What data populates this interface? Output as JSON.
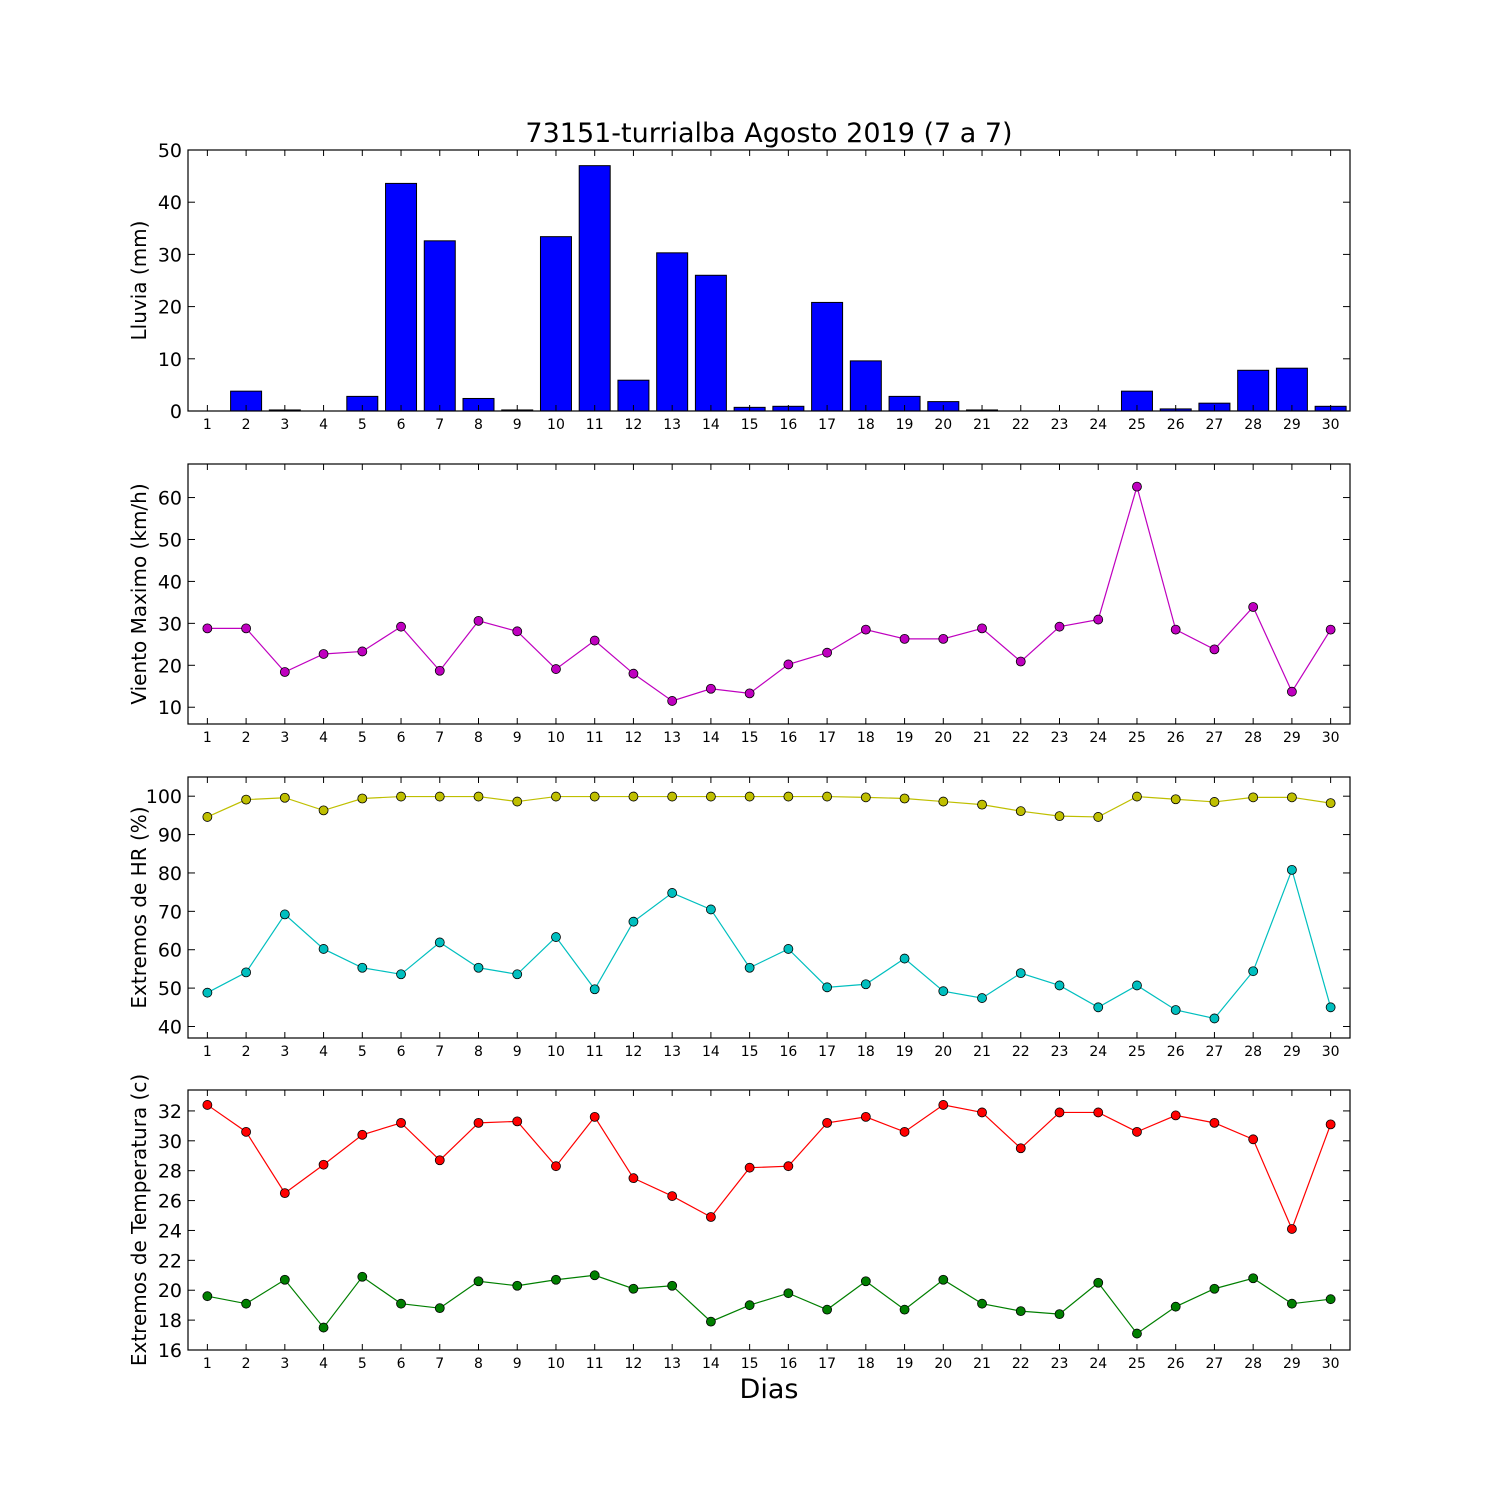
{
  "figure": {
    "title": "73151-turrialba Agosto 2019  (7 a 7)",
    "xlabel": "Dias"
  },
  "chart_data": [
    {
      "type": "bar",
      "ylabel": "Lluvia (mm)",
      "ylim": [
        0,
        50
      ],
      "yticks": [
        0,
        10,
        20,
        30,
        40,
        50
      ],
      "categories": [
        1,
        2,
        3,
        4,
        5,
        6,
        7,
        8,
        9,
        10,
        11,
        12,
        13,
        14,
        15,
        16,
        17,
        18,
        19,
        20,
        21,
        22,
        23,
        24,
        25,
        26,
        27,
        28,
        29,
        30
      ],
      "series": [
        {
          "color": "#0000ff",
          "values": [
            0,
            3.8,
            0.2,
            0,
            2.8,
            43.6,
            32.6,
            2.4,
            0.2,
            33.4,
            47.0,
            5.9,
            30.3,
            26.0,
            0.7,
            0.9,
            20.8,
            9.6,
            2.8,
            1.8,
            0.2,
            0,
            0,
            0,
            3.8,
            0.4,
            1.5,
            7.8,
            8.2,
            0.9
          ]
        }
      ]
    },
    {
      "type": "line",
      "ylabel": "Viento Maximo (km/h)",
      "ylim": [
        6,
        68
      ],
      "yticks": [
        10,
        20,
        30,
        40,
        50,
        60
      ],
      "x": [
        1,
        2,
        3,
        4,
        5,
        6,
        7,
        8,
        9,
        10,
        11,
        12,
        13,
        14,
        15,
        16,
        17,
        18,
        19,
        20,
        21,
        22,
        23,
        24,
        25,
        26,
        27,
        28,
        29,
        30
      ],
      "series": [
        {
          "color": "#bf00bf",
          "values": [
            28.8,
            28.8,
            18.4,
            22.7,
            23.3,
            29.2,
            18.7,
            30.6,
            28.1,
            19.1,
            25.9,
            18.0,
            11.5,
            14.4,
            13.3,
            20.2,
            23.0,
            28.5,
            26.3,
            26.3,
            28.8,
            20.9,
            29.2,
            30.9,
            62.6,
            28.5,
            23.8,
            33.9,
            13.7,
            28.5
          ]
        }
      ]
    },
    {
      "type": "line",
      "ylabel": "Extremos de HR (%)",
      "ylim": [
        37,
        105
      ],
      "yticks": [
        40,
        50,
        60,
        70,
        80,
        90,
        100
      ],
      "x": [
        1,
        2,
        3,
        4,
        5,
        6,
        7,
        8,
        9,
        10,
        11,
        12,
        13,
        14,
        15,
        16,
        17,
        18,
        19,
        20,
        21,
        22,
        23,
        24,
        25,
        26,
        27,
        28,
        29,
        30
      ],
      "series": [
        {
          "color": "#bfbf00",
          "values": [
            94.6,
            99.1,
            99.6,
            96.3,
            99.4,
            99.9,
            99.9,
            99.9,
            98.6,
            99.9,
            99.9,
            99.9,
            99.9,
            99.9,
            99.9,
            99.9,
            99.9,
            99.7,
            99.4,
            98.6,
            97.8,
            96.1,
            94.8,
            94.6,
            99.9,
            99.2,
            98.5,
            99.7,
            99.7,
            98.2
          ]
        },
        {
          "color": "#00bfbf",
          "values": [
            48.8,
            54.1,
            69.2,
            60.2,
            55.3,
            53.6,
            61.9,
            55.3,
            53.6,
            63.3,
            49.7,
            67.3,
            74.8,
            70.5,
            55.3,
            60.2,
            50.2,
            51.0,
            57.7,
            49.2,
            47.4,
            53.9,
            50.7,
            45.0,
            50.7,
            44.3,
            42.1,
            54.4,
            80.8,
            45.0
          ]
        }
      ]
    },
    {
      "type": "line",
      "ylabel": "Extremos de Temperatura (c)",
      "ylim": [
        16,
        33.4
      ],
      "yticks": [
        16,
        18,
        20,
        22,
        24,
        26,
        28,
        30,
        32
      ],
      "x": [
        1,
        2,
        3,
        4,
        5,
        6,
        7,
        8,
        9,
        10,
        11,
        12,
        13,
        14,
        15,
        16,
        17,
        18,
        19,
        20,
        21,
        22,
        23,
        24,
        25,
        26,
        27,
        28,
        29,
        30
      ],
      "series": [
        {
          "color": "#ff0000",
          "values": [
            32.4,
            30.6,
            26.5,
            28.4,
            30.4,
            31.2,
            28.7,
            31.2,
            31.3,
            28.3,
            31.6,
            27.5,
            26.3,
            24.9,
            28.2,
            28.3,
            31.2,
            31.6,
            30.6,
            32.4,
            31.9,
            29.5,
            31.9,
            31.9,
            30.6,
            31.7,
            31.2,
            30.1,
            24.1,
            31.1
          ]
        },
        {
          "color": "#007f00",
          "values": [
            19.6,
            19.1,
            20.7,
            17.5,
            20.9,
            19.1,
            18.8,
            20.6,
            20.3,
            20.7,
            21.0,
            20.1,
            20.3,
            17.9,
            19.0,
            19.8,
            18.7,
            20.6,
            18.7,
            20.7,
            19.1,
            18.6,
            18.4,
            20.5,
            17.1,
            18.9,
            20.1,
            20.8,
            19.1,
            19.4
          ]
        }
      ]
    }
  ]
}
